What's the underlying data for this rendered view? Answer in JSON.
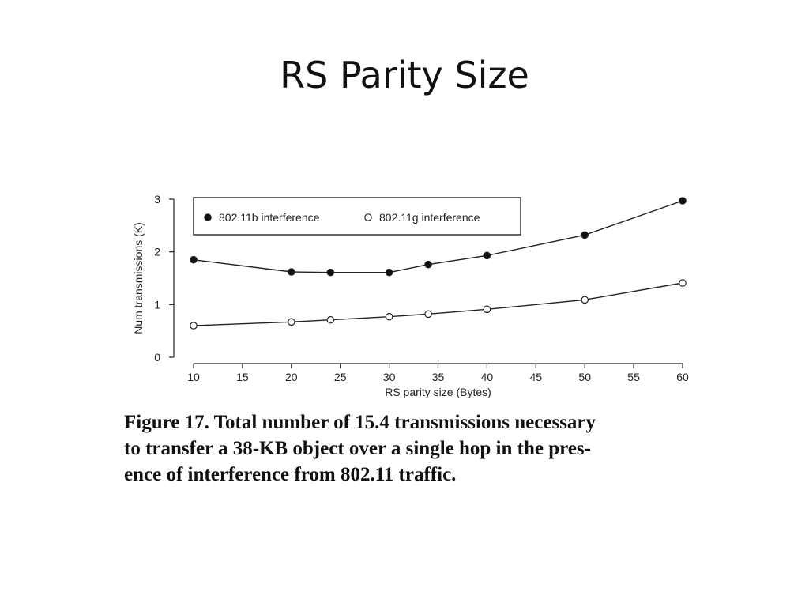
{
  "slide": {
    "title": "RS Parity Size"
  },
  "caption": {
    "lines": [
      "Figure 17. Total number of 15.4 transmissions necessary",
      "to transfer a 38-KB object over a single hop in the pres-",
      "ence of interference from 802.11 traffic."
    ]
  },
  "chart_data": {
    "type": "line",
    "xlabel": "RS parity size (Bytes)",
    "ylabel": "Num transmissions (K)",
    "xlim": [
      10,
      60
    ],
    "ylim": [
      0,
      3
    ],
    "xticks": [
      10,
      15,
      20,
      25,
      30,
      35,
      40,
      45,
      50,
      55,
      60
    ],
    "yticks": [
      0,
      1,
      2,
      3
    ],
    "grid": false,
    "legend": "top-left, boxed, horizontal",
    "x": [
      10,
      20,
      24,
      30,
      34,
      40,
      50,
      60
    ],
    "series": [
      {
        "name": "802.11b interference",
        "marker": "filled-circle",
        "values": [
          1.85,
          1.62,
          1.61,
          1.61,
          1.76,
          1.93,
          2.32,
          2.97
        ]
      },
      {
        "name": "802.11g interference",
        "marker": "open-circle",
        "values": [
          0.6,
          0.67,
          0.71,
          0.77,
          0.82,
          0.91,
          1.09,
          1.41
        ]
      }
    ]
  }
}
